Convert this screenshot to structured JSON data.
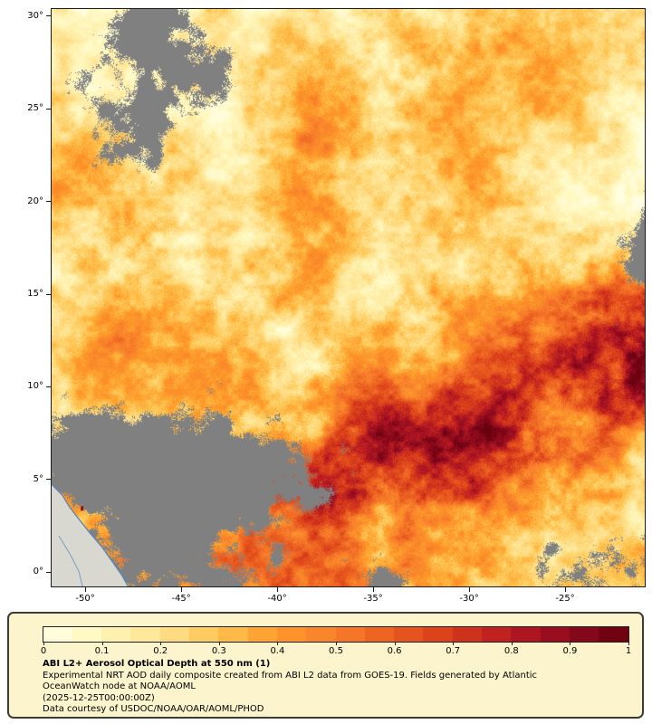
{
  "chart_data": {
    "type": "heatmap",
    "title": "ABI L2+ Aerosol Optical Depth at 550 nm (1)",
    "x_axis": {
      "range": [
        -51.75,
        -20.85
      ],
      "ticks": [
        {
          "value": -50,
          "label": "-50°"
        },
        {
          "value": -45,
          "label": "-45°"
        },
        {
          "value": -40,
          "label": "-40°"
        },
        {
          "value": -35,
          "label": "-35°"
        },
        {
          "value": -30,
          "label": "-30°"
        },
        {
          "value": -25,
          "label": "-25°"
        }
      ]
    },
    "y_axis": {
      "range": [
        -0.78,
        30.39
      ],
      "ticks": [
        {
          "value": 30,
          "label": "30°"
        },
        {
          "value": 25,
          "label": "25°"
        },
        {
          "value": 20,
          "label": "20°"
        },
        {
          "value": 15,
          "label": "15°"
        },
        {
          "value": 10,
          "label": "10°"
        },
        {
          "value": 5,
          "label": "5°"
        },
        {
          "value": 0,
          "label": "0°"
        }
      ]
    },
    "colorbar": {
      "min": 0,
      "max": 1,
      "segments": 20,
      "tick_labels": [
        "0",
        "0.1",
        "0.2",
        "0.3",
        "0.4",
        "0.5",
        "0.6",
        "0.7",
        "0.8",
        "0.9",
        "1"
      ],
      "stops": [
        "#ffffe5",
        "#fff7bc",
        "#fee391",
        "#fec44f",
        "#fe9929",
        "#f87f2c",
        "#ea5c1f",
        "#d73a1a",
        "#b81a22",
        "#8d0a1e",
        "#67000d"
      ],
      "nodata_color": "#808080"
    },
    "value_grid": [
      [
        0.18,
        0.2,
        0.22,
        0.25,
        0.25,
        0.24,
        0.22,
        0.25,
        0.28,
        0.26,
        0.22,
        0.25,
        0.28
      ],
      [
        0.15,
        0.18,
        0.24,
        0.27,
        0.25,
        0.27,
        0.25,
        0.28,
        0.3,
        0.28,
        0.25,
        0.22,
        0.25
      ],
      [
        0.16,
        0.2,
        0.25,
        0.25,
        0.28,
        0.3,
        0.28,
        0.3,
        0.28,
        0.25,
        0.22,
        0.2,
        0.22
      ],
      [
        0.22,
        0.28,
        0.3,
        0.25,
        0.25,
        0.3,
        0.3,
        0.28,
        0.25,
        0.25,
        0.22,
        0.2,
        0.2
      ],
      [
        0.25,
        0.32,
        0.34,
        0.28,
        0.25,
        0.28,
        0.3,
        0.28,
        0.25,
        0.25,
        0.22,
        0.22,
        0.26
      ],
      [
        0.3,
        0.37,
        0.34,
        0.3,
        0.28,
        0.3,
        0.28,
        0.3,
        0.28,
        0.3,
        0.31,
        0.36,
        0.42
      ],
      [
        0.28,
        0.33,
        0.32,
        0.3,
        0.3,
        0.32,
        0.3,
        0.33,
        0.36,
        0.42,
        0.5,
        0.6,
        0.68
      ],
      [
        0.26,
        0.3,
        0.3,
        0.28,
        0.32,
        0.36,
        0.4,
        0.4,
        0.45,
        0.52,
        0.62,
        0.78,
        0.88
      ],
      [
        0.24,
        0.28,
        0.28,
        0.3,
        0.35,
        0.45,
        0.52,
        0.5,
        0.55,
        0.62,
        0.72,
        0.88,
        0.9
      ],
      [
        0.26,
        0.28,
        0.3,
        0.33,
        0.4,
        0.52,
        0.65,
        0.7,
        0.66,
        0.7,
        0.72,
        0.6,
        0.3
      ],
      [
        0.3,
        0.33,
        0.36,
        0.36,
        0.42,
        0.55,
        0.72,
        0.74,
        0.68,
        0.62,
        0.55,
        0.42,
        0.3
      ],
      [
        0.3,
        0.32,
        0.35,
        0.38,
        0.42,
        0.46,
        0.52,
        0.55,
        0.48,
        0.42,
        0.38,
        0.3,
        0.26
      ],
      [
        0.28,
        0.3,
        0.32,
        0.35,
        0.38,
        0.42,
        0.45,
        0.44,
        0.4,
        0.34,
        0.3,
        0.26,
        0.22
      ]
    ],
    "mask_grid": [
      [
        0.5,
        0.3,
        0.6,
        0.5,
        0.2,
        0.1,
        0.0,
        0.0,
        0.1,
        0.2,
        0.1,
        0.4,
        0.6
      ],
      [
        0.2,
        0.5,
        0.7,
        0.6,
        0.3,
        0.1,
        0.0,
        0.0,
        0.0,
        0.1,
        0.1,
        0.2,
        0.4
      ],
      [
        0.3,
        0.6,
        0.7,
        0.4,
        0.2,
        0.0,
        0.0,
        0.0,
        0.0,
        0.0,
        0.1,
        0.2,
        0.2
      ],
      [
        0.2,
        0.4,
        0.5,
        0.2,
        0.1,
        0.0,
        0.0,
        0.1,
        0.0,
        0.0,
        0.2,
        0.1,
        0.3
      ],
      [
        0.1,
        0.1,
        0.2,
        0.1,
        0.3,
        0.1,
        0.0,
        0.0,
        0.0,
        0.1,
        0.2,
        0.3,
        0.5
      ],
      [
        0.0,
        0.0,
        0.1,
        0.0,
        0.1,
        0.0,
        0.1,
        0.0,
        0.0,
        0.0,
        0.1,
        0.3,
        0.5
      ],
      [
        0.1,
        0.0,
        0.0,
        0.1,
        0.2,
        0.4,
        0.2,
        0.1,
        0.0,
        0.1,
        0.2,
        0.2,
        0.3
      ],
      [
        0.2,
        0.1,
        0.1,
        0.2,
        0.1,
        0.2,
        0.1,
        0.0,
        0.1,
        0.0,
        0.0,
        0.1,
        0.2
      ],
      [
        0.3,
        0.3,
        0.4,
        0.4,
        0.3,
        0.2,
        0.1,
        0.1,
        0.0,
        0.1,
        0.0,
        0.0,
        0.2
      ],
      [
        0.6,
        0.7,
        0.8,
        0.8,
        0.7,
        0.5,
        0.35,
        0.1,
        0.1,
        0.0,
        0.1,
        0.0,
        0.1
      ],
      [
        0.7,
        0.8,
        0.9,
        0.9,
        0.8,
        0.6,
        0.35,
        0.2,
        0.1,
        0.2,
        0.3,
        0.2,
        0.3
      ],
      [
        0.5,
        0.6,
        0.7,
        0.7,
        0.6,
        0.4,
        0.3,
        0.3,
        0.4,
        0.3,
        0.5,
        0.6,
        0.5
      ],
      [
        0.3,
        0.4,
        0.5,
        0.5,
        0.5,
        0.5,
        0.4,
        0.3,
        0.3,
        0.4,
        0.5,
        0.6,
        0.5
      ]
    ],
    "land": {
      "fill": "#d8d8d0",
      "coast_color": "#5b84b8",
      "river_color": "#7a9cc4",
      "polygon_uv": [
        [
          0,
          0.823
        ],
        [
          0.018,
          0.842
        ],
        [
          0.03,
          0.862
        ],
        [
          0.048,
          0.886
        ],
        [
          0.065,
          0.908
        ],
        [
          0.085,
          0.932
        ],
        [
          0.103,
          0.958
        ],
        [
          0.118,
          0.98
        ],
        [
          0.129,
          1.0
        ]
      ],
      "river_uv": [
        [
          0.012,
          0.912
        ],
        [
          0.032,
          0.946
        ],
        [
          0.046,
          0.974
        ],
        [
          0.052,
          1.0
        ]
      ],
      "speck": {
        "uv": [
          0.049,
          0.861
        ],
        "color": "#9c0f20"
      }
    }
  },
  "legend": {
    "title": "ABI L2+ Aerosol Optical Depth at 550 nm (1)",
    "lines": [
      "Experimental NRT AOD daily composite created from ABI L2 data from GOES-19. Fields generated by Atlantic",
      "OceanWatch node at NOAA/AOML",
      "(2025-12-25T00:00:00Z)",
      "Data courtesy of USDOC/NOAA/OAR/AOML/PHOD"
    ]
  }
}
